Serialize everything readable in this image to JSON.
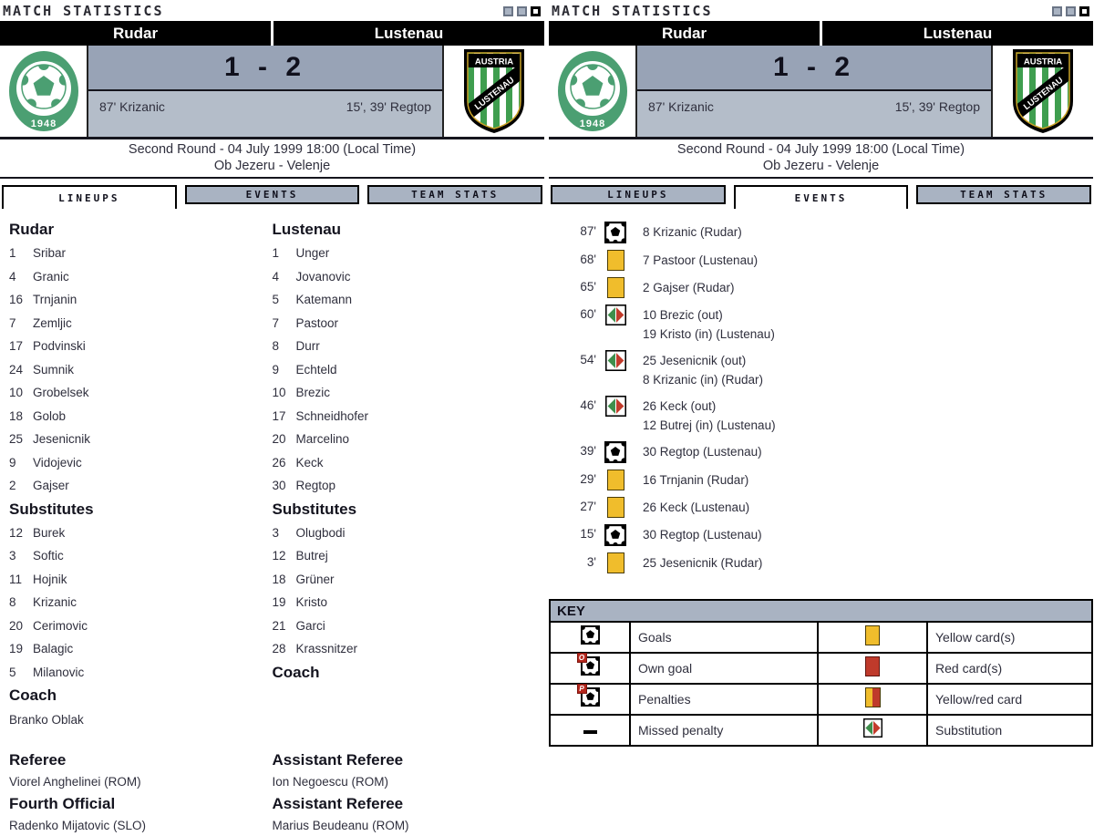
{
  "window": {
    "title": "MATCH STATISTICS"
  },
  "header": {
    "home_team": "Rudar",
    "away_team": "Lustenau",
    "score": "1 - 2",
    "home_scorers": "87' Krizanic",
    "away_scorers": "15', 39' Regtop",
    "round_line": "Second Round - 04 July 1999 18:00 (Local Time)",
    "venue_line": "Ob Jezeru - Velenje",
    "home_crest_year": "1948",
    "away_crest_line1": "AUSTRIA",
    "away_crest_line2": "LUSTENAU"
  },
  "tabs": [
    "LINEUPS",
    "EVENTS",
    "TEAM STATS"
  ],
  "lineups": {
    "home": {
      "name": "Rudar",
      "starters": [
        {
          "num": "1",
          "name": "Sribar"
        },
        {
          "num": "4",
          "name": "Granic"
        },
        {
          "num": "16",
          "name": "Trnjanin"
        },
        {
          "num": "7",
          "name": "Zemljic"
        },
        {
          "num": "17",
          "name": "Podvinski"
        },
        {
          "num": "24",
          "name": "Sumnik"
        },
        {
          "num": "10",
          "name": "Grobelsek"
        },
        {
          "num": "18",
          "name": "Golob"
        },
        {
          "num": "25",
          "name": "Jesenicnik"
        },
        {
          "num": "9",
          "name": "Vidojevic"
        },
        {
          "num": "2",
          "name": "Gajser"
        }
      ],
      "subs_title": "Substitutes",
      "subs": [
        {
          "num": "12",
          "name": "Burek"
        },
        {
          "num": "3",
          "name": "Softic"
        },
        {
          "num": "11",
          "name": "Hojnik"
        },
        {
          "num": "8",
          "name": "Krizanic"
        },
        {
          "num": "20",
          "name": "Cerimovic"
        },
        {
          "num": "19",
          "name": "Balagic"
        },
        {
          "num": "5",
          "name": "Milanovic"
        }
      ],
      "coach_title": "Coach",
      "coach": "Branko Oblak"
    },
    "away": {
      "name": "Lustenau",
      "starters": [
        {
          "num": "1",
          "name": "Unger"
        },
        {
          "num": "4",
          "name": "Jovanovic"
        },
        {
          "num": "5",
          "name": "Katemann"
        },
        {
          "num": "7",
          "name": "Pastoor"
        },
        {
          "num": "8",
          "name": "Durr"
        },
        {
          "num": "9",
          "name": "Echteld"
        },
        {
          "num": "10",
          "name": "Brezic"
        },
        {
          "num": "17",
          "name": "Schneidhofer"
        },
        {
          "num": "20",
          "name": "Marcelino"
        },
        {
          "num": "26",
          "name": "Keck"
        },
        {
          "num": "30",
          "name": "Regtop"
        }
      ],
      "subs_title": "Substitutes",
      "subs": [
        {
          "num": "3",
          "name": "Olugbodi"
        },
        {
          "num": "12",
          "name": "Butrej"
        },
        {
          "num": "18",
          "name": "Grüner"
        },
        {
          "num": "19",
          "name": "Kristo"
        },
        {
          "num": "21",
          "name": "Garci"
        },
        {
          "num": "28",
          "name": "Krassnitzer"
        }
      ],
      "coach_title": "Coach",
      "coach": ""
    },
    "officials": {
      "left": [
        {
          "role": "Referee",
          "name": "Viorel Anghelinei (ROM)"
        },
        {
          "role": "Fourth Official",
          "name": "Radenko Mijatovic (SLO)"
        }
      ],
      "right": [
        {
          "role": "Assistant Referee",
          "name": "Ion Negoescu (ROM)"
        },
        {
          "role": "Assistant Referee",
          "name": "Marius Beudeanu (ROM)"
        }
      ]
    }
  },
  "events": [
    {
      "minute": "87'",
      "icon": "goal",
      "lines": [
        "8 Krizanic (Rudar)"
      ]
    },
    {
      "minute": "68'",
      "icon": "yellow-card",
      "lines": [
        "7 Pastoor (Lustenau)"
      ]
    },
    {
      "minute": "65'",
      "icon": "yellow-card",
      "lines": [
        "2 Gajser (Rudar)"
      ]
    },
    {
      "minute": "60'",
      "icon": "substitution",
      "lines": [
        "10 Brezic (out)",
        "19 Kristo (in) (Lustenau)"
      ]
    },
    {
      "minute": "54'",
      "icon": "substitution",
      "lines": [
        "25 Jesenicnik (out)",
        "8 Krizanic (in) (Rudar)"
      ]
    },
    {
      "minute": "46'",
      "icon": "substitution",
      "lines": [
        "26 Keck (out)",
        "12 Butrej (in) (Lustenau)"
      ]
    },
    {
      "minute": "39'",
      "icon": "goal",
      "lines": [
        "30 Regtop (Lustenau)"
      ]
    },
    {
      "minute": "29'",
      "icon": "yellow-card",
      "lines": [
        "16 Trnjanin (Rudar)"
      ]
    },
    {
      "minute": "27'",
      "icon": "yellow-card",
      "lines": [
        "26 Keck (Lustenau)"
      ]
    },
    {
      "minute": "15'",
      "icon": "goal",
      "lines": [
        "30 Regtop (Lustenau)"
      ]
    },
    {
      "minute": "3'",
      "icon": "yellow-card",
      "lines": [
        "25 Jesenicnik (Rudar)"
      ]
    }
  ],
  "key": {
    "title": "KEY",
    "rows": [
      {
        "icon_left": "goal",
        "label_left": "Goals",
        "icon_right": "yellow-card",
        "label_right": "Yellow card(s)"
      },
      {
        "icon_left": "own-goal",
        "label_left": "Own goal",
        "icon_right": "red-card",
        "label_right": "Red card(s)"
      },
      {
        "icon_left": "penalty",
        "label_left": "Penalties",
        "icon_right": "yellow-red-card",
        "label_right": "Yellow/red card"
      },
      {
        "icon_left": "missed-penalty",
        "label_left": "Missed penalty",
        "icon_right": "substitution",
        "label_right": "Substitution"
      }
    ]
  },
  "icons": {
    "goal": "football",
    "own_goal_letter": "O",
    "penalty_letter": "P",
    "substitution": "green-left-red-right-triangles"
  },
  "colors": {
    "accent_gray_blue": "#a9b3c2",
    "score_top_bg": "#98a3b6",
    "score_bottom_bg": "#b4bdc9",
    "team_bar_bg": "#000000",
    "yellow_card": "#f0bd2c",
    "red_card": "#bf3a2b",
    "sub_green": "#3e8e4b",
    "sub_red": "#c23b2b",
    "rudar_green": "#4b9f72",
    "lustenau_green": "#3f9e4f",
    "text_dark": "#2f2f3d"
  }
}
